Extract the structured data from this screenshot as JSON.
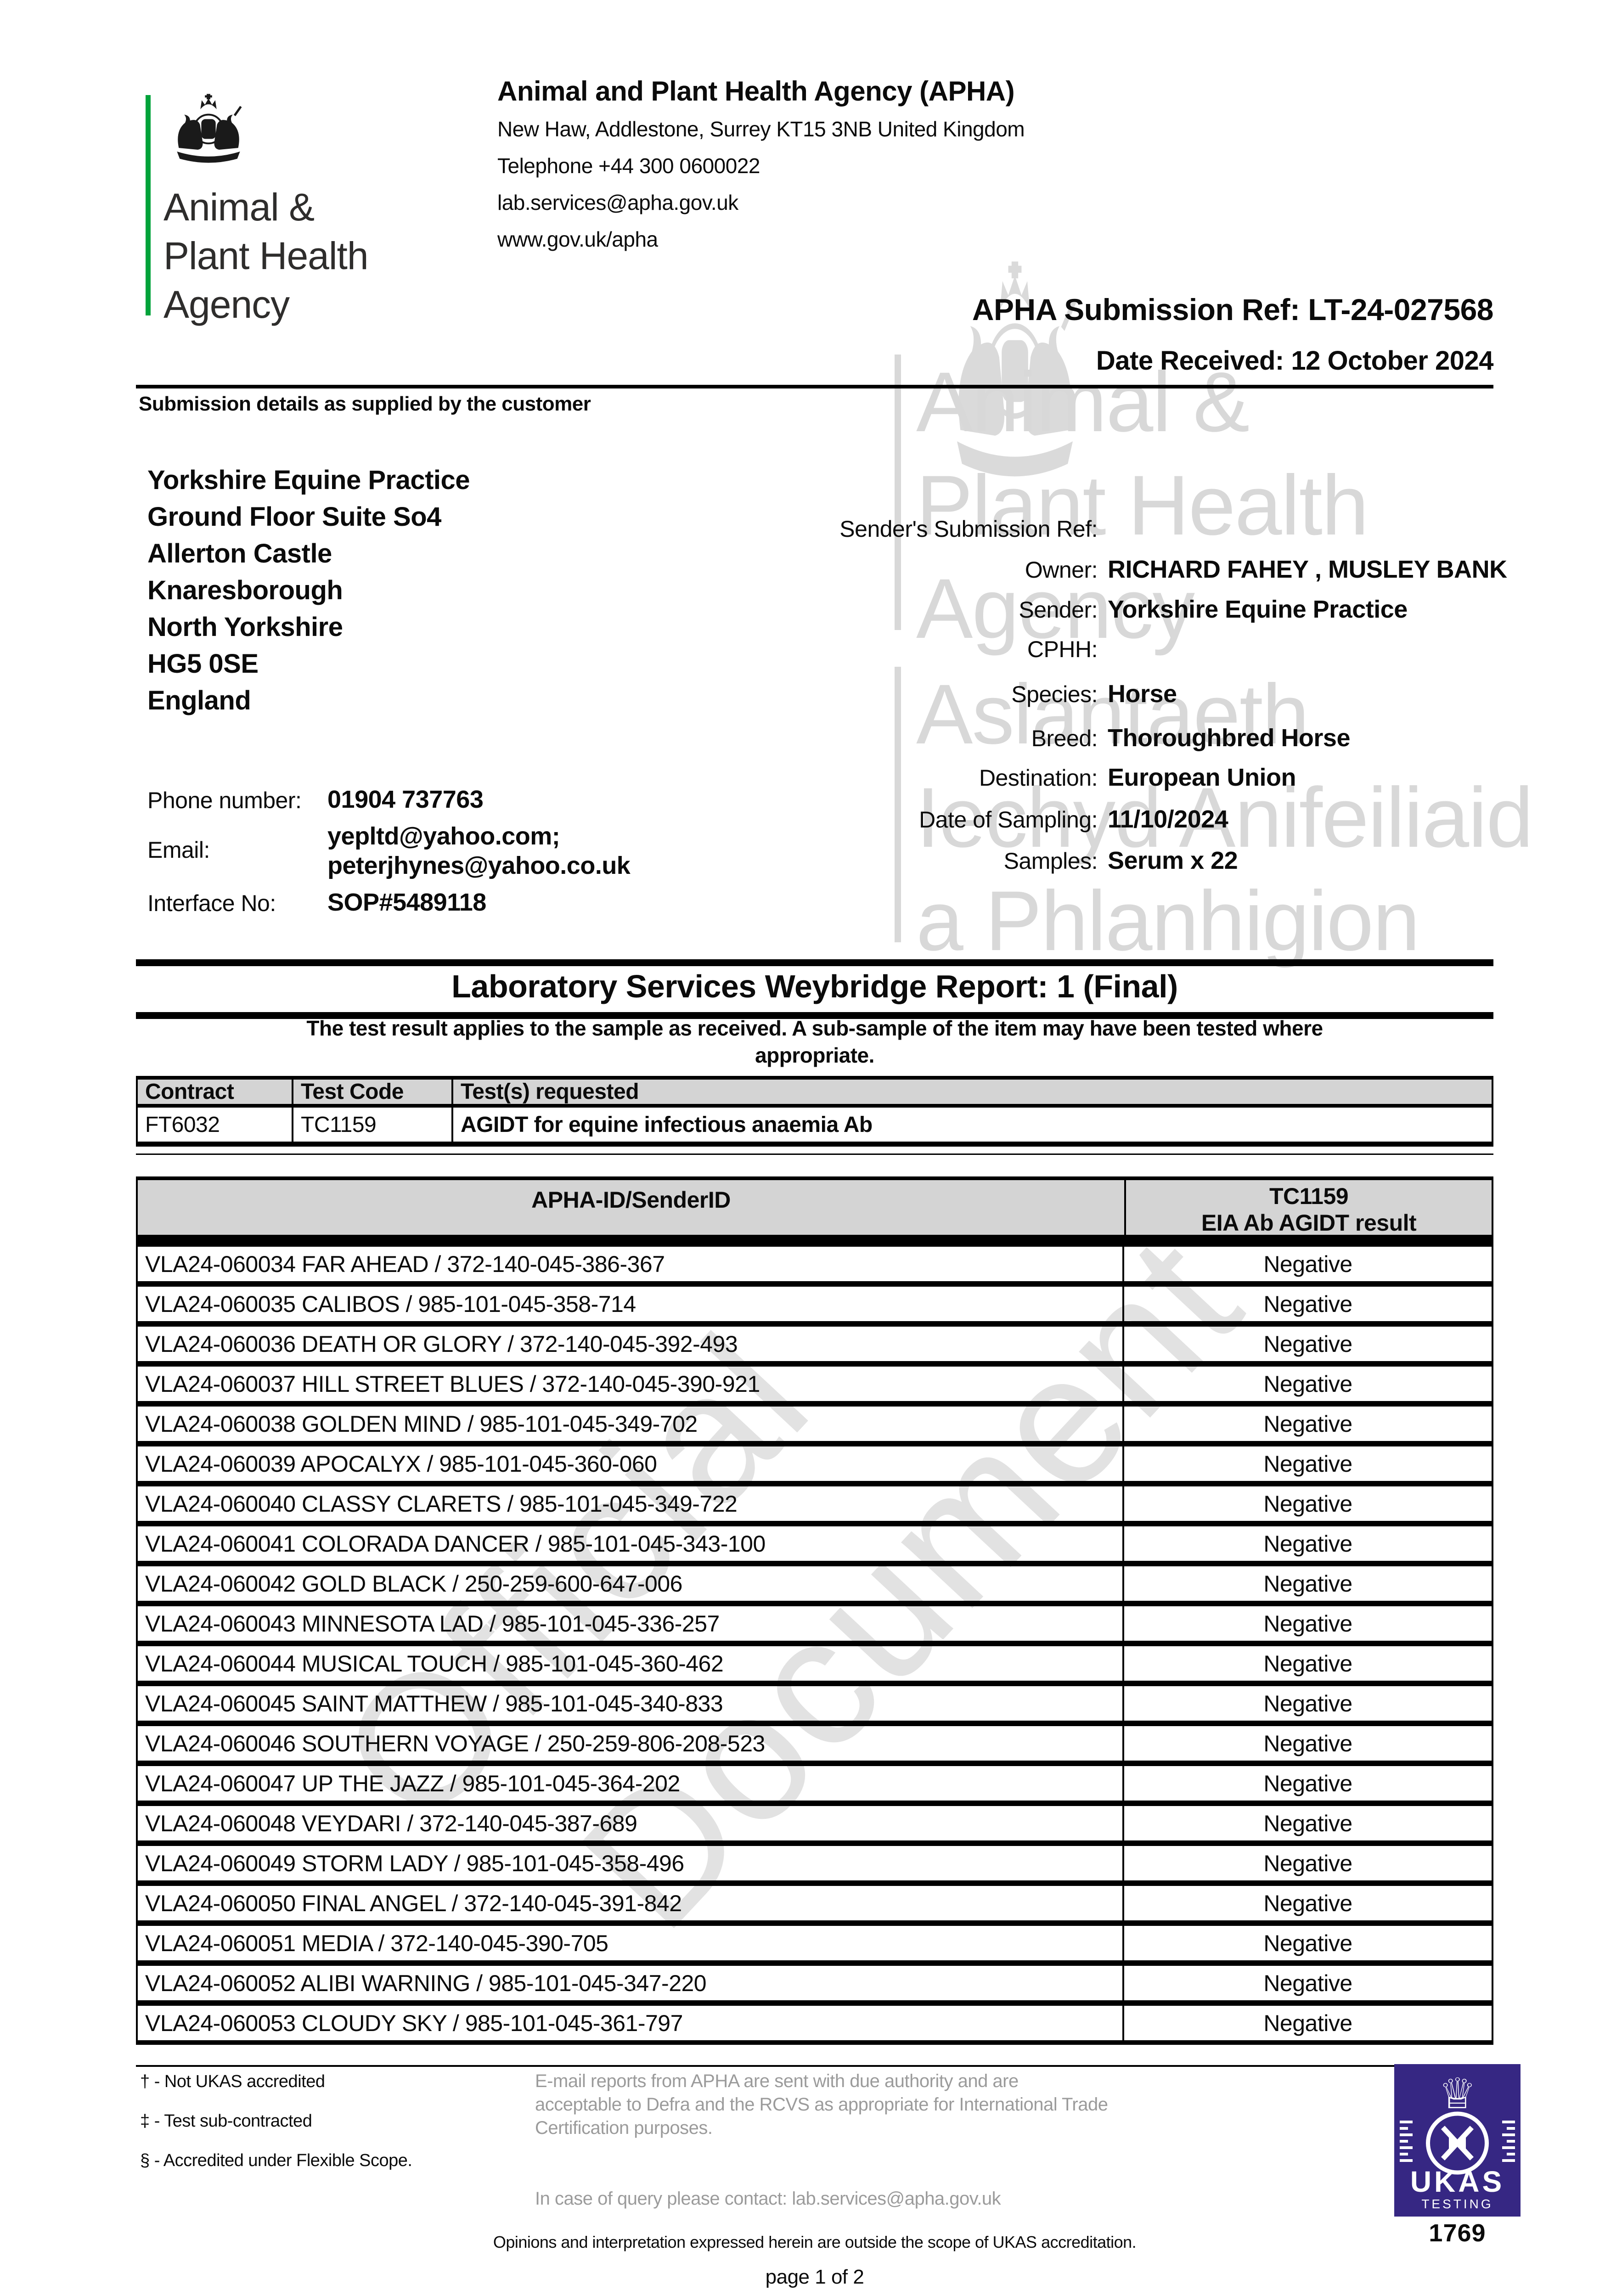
{
  "header": {
    "logo_line1": "Animal &",
    "logo_line2": "Plant Health",
    "logo_line3": "Agency",
    "agency_title": "Animal and Plant Health Agency (APHA)",
    "address_line1": "New Haw, Addlestone, Surrey KT15 3NB United Kingdom",
    "address_line2": "Telephone +44 300 0600022",
    "address_line3": "lab.services@apha.gov.uk",
    "address_line4": "www.gov.uk/apha",
    "submission_ref": "APHA Submission Ref: LT-24-027568",
    "date_received": "Date Received: 12 October 2024"
  },
  "submission": {
    "section_title": "Submission details as supplied by the customer",
    "customer_address": [
      "Yorkshire Equine Practice",
      "Ground Floor Suite So4",
      "Allerton Castle",
      "Knaresborough",
      "North Yorkshire",
      "HG5 0SE",
      "England"
    ],
    "fields": [
      {
        "label": "Sender's Submission Ref:",
        "value": ""
      },
      {
        "label": "Owner:",
        "value": "RICHARD FAHEY , MUSLEY BANK"
      },
      {
        "label": "Sender:",
        "value": "Yorkshire Equine Practice"
      },
      {
        "label": "CPHH:",
        "value": ""
      },
      {
        "label": "Species:",
        "value": "Horse"
      },
      {
        "label": "Breed:",
        "value": "Thoroughbred Horse"
      },
      {
        "label": "Destination:",
        "value": "European Union"
      },
      {
        "label": "Date of Sampling:",
        "value": "11/10/2024"
      },
      {
        "label": "Samples:",
        "value": "Serum x 22"
      }
    ],
    "phone_label": "Phone number:",
    "phone_value": "01904 737763",
    "email_label": "Email:",
    "email_value1": "yepltd@yahoo.com;",
    "email_value2": "peterjhynes@yahoo.co.uk",
    "interface_label": "Interface No:",
    "interface_value": "SOP#5489118"
  },
  "report": {
    "title": "Laboratory Services Weybridge Report: 1 (Final)",
    "note_line1": "The test result applies to the sample as received. A sub-sample of the item may have been tested where",
    "note_line2": "appropriate."
  },
  "contract_table": {
    "header_contract": "Contract",
    "header_test_code": "Test Code",
    "header_tests_requested": "Test(s) requested",
    "row_contract": "FT6032",
    "row_test_code": "TC1159",
    "row_tests_requested": "AGIDT for equine infectious anaemia Ab"
  },
  "results_table": {
    "col1_header": "APHA-ID/SenderID",
    "col2_header_line1": "TC1159",
    "col2_header_line2": "EIA Ab AGIDT result",
    "rows": [
      {
        "id": "VLA24-060034 FAR AHEAD / 372-140-045-386-367",
        "result": "Negative"
      },
      {
        "id": "VLA24-060035 CALIBOS / 985-101-045-358-714",
        "result": "Negative"
      },
      {
        "id": "VLA24-060036 DEATH OR GLORY / 372-140-045-392-493",
        "result": "Negative"
      },
      {
        "id": "VLA24-060037 HILL STREET BLUES / 372-140-045-390-921",
        "result": "Negative"
      },
      {
        "id": "VLA24-060038 GOLDEN MIND / 985-101-045-349-702",
        "result": "Negative"
      },
      {
        "id": "VLA24-060039 APOCALYX / 985-101-045-360-060",
        "result": "Negative"
      },
      {
        "id": "VLA24-060040 CLASSY CLARETS / 985-101-045-349-722",
        "result": "Negative"
      },
      {
        "id": "VLA24-060041 COLORADA DANCER / 985-101-045-343-100",
        "result": "Negative"
      },
      {
        "id": "VLA24-060042 GOLD BLACK / 250-259-600-647-006",
        "result": "Negative"
      },
      {
        "id": "VLA24-060043 MINNESOTA LAD / 985-101-045-336-257",
        "result": "Negative"
      },
      {
        "id": "VLA24-060044 MUSICAL TOUCH / 985-101-045-360-462",
        "result": "Negative"
      },
      {
        "id": "VLA24-060045 SAINT MATTHEW / 985-101-045-340-833",
        "result": "Negative"
      },
      {
        "id": "VLA24-060046 SOUTHERN VOYAGE / 250-259-806-208-523",
        "result": "Negative"
      },
      {
        "id": "VLA24-060047 UP THE JAZZ / 985-101-045-364-202",
        "result": "Negative"
      },
      {
        "id": "VLA24-060048 VEYDARI / 372-140-045-387-689",
        "result": "Negative"
      },
      {
        "id": "VLA24-060049 STORM LADY / 985-101-045-358-496",
        "result": "Negative"
      },
      {
        "id": "VLA24-060050 FINAL ANGEL / 372-140-045-391-842",
        "result": "Negative"
      },
      {
        "id": "VLA24-060051 MEDIA / 372-140-045-390-705",
        "result": "Negative"
      },
      {
        "id": "VLA24-060052 ALIBI WARNING / 985-101-045-347-220",
        "result": "Negative"
      },
      {
        "id": "VLA24-060053 CLOUDY SKY / 985-101-045-361-797",
        "result": "Negative"
      }
    ]
  },
  "watermarks": {
    "diagonal_line1": "Official",
    "diagonal_line2": "Document",
    "apha_lines": [
      "Animal &",
      "Plant Health",
      "Agency",
      "Asiantaeth",
      "Iechyd Anifeiliaid",
      "a Phlanhigion"
    ]
  },
  "footer": {
    "footnote1": "† - Not UKAS accredited",
    "footnote2": "‡ - Test sub-contracted",
    "footnote3": "§ - Accredited under Flexible Scope.",
    "email_notice_line1": "E-mail reports from APHA are sent with due authority and are",
    "email_notice_line2": "acceptable to Defra and the RCVS as appropriate for International Trade",
    "email_notice_line3": "Certification purposes.",
    "query_contact": "In case of query please contact: lab.services@apha.gov.uk",
    "opinions": "Opinions and interpretation expressed herein are outside the scope of UKAS accreditation.",
    "page": "page 1 of 2",
    "ukas_label": "UKAS",
    "ukas_sub": "TESTING",
    "ukas_number": "1769",
    "ukas_crown_icon": "♕"
  },
  "colors": {
    "green": "#00a33b",
    "ukas_purple": "#362783",
    "table_header_gray": "#d4d4d4",
    "watermark_gray": "#d8d8d8",
    "footer_gray": "#9b9b9b"
  }
}
